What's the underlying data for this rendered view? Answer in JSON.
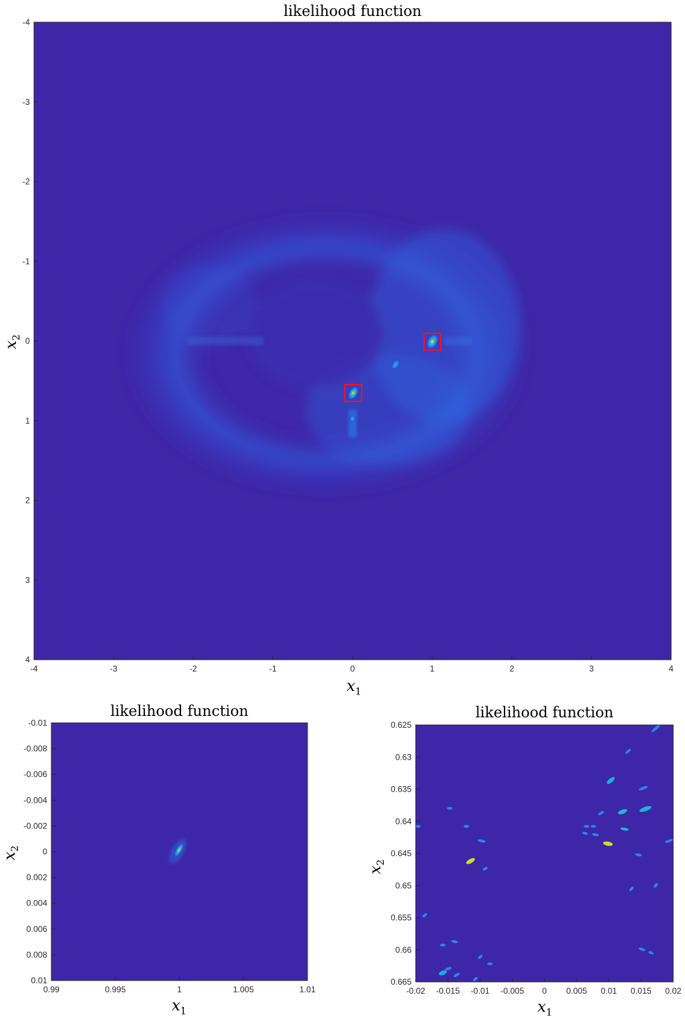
{
  "chart_data": [
    {
      "type": "heatmap",
      "title": "likelihood function",
      "xlabel": "x",
      "xlabel_sub": "1",
      "ylabel": "x",
      "ylabel_sub": "2",
      "xlim": [
        -4,
        4
      ],
      "ylim": [
        -4,
        4
      ],
      "y_direction": "reversed",
      "xticks": [
        "-4",
        "-3",
        "-2",
        "-1",
        "0",
        "1",
        "2",
        "3",
        "4"
      ],
      "yticks": [
        "-4",
        "-3",
        "-2",
        "-1",
        "0",
        "1",
        "2",
        "3",
        "4"
      ],
      "colormap": "parula",
      "highlight_boxes": [
        {
          "x1_range": [
            0.9,
            1.1
          ],
          "x2_range": [
            -0.1,
            0.1
          ]
        },
        {
          "x1_range": [
            -0.1,
            0.1
          ],
          "x2_range": [
            0.55,
            0.75
          ]
        }
      ],
      "peaks": [
        {
          "x1": 1.0,
          "x2": 0.0
        },
        {
          "x1": 0.0,
          "x2": 0.65
        }
      ]
    },
    {
      "type": "heatmap",
      "title": "likelihood function",
      "xlabel": "x",
      "xlabel_sub": "1",
      "ylabel": "x",
      "ylabel_sub": "2",
      "xlim": [
        0.99,
        1.01
      ],
      "ylim": [
        -0.01,
        0.01
      ],
      "y_direction": "reversed",
      "xticks": [
        "0.99",
        "0.995",
        "1",
        "1.005",
        "1.01"
      ],
      "yticks": [
        "-0.01",
        "-0.008",
        "-0.006",
        "-0.004",
        "-0.002",
        "0",
        "0.002",
        "0.004",
        "0.006",
        "0.008",
        "0.01"
      ],
      "colormap": "parula",
      "peaks": [
        {
          "x1": 1.0,
          "x2": 0.0
        }
      ]
    },
    {
      "type": "heatmap",
      "title": "likelihood function",
      "xlabel": "x",
      "xlabel_sub": "1",
      "ylabel": "x",
      "ylabel_sub": "2",
      "xlim": [
        -0.02,
        0.02
      ],
      "ylim": [
        0.625,
        0.665
      ],
      "y_direction": "reversed",
      "xticks": [
        "-0.02",
        "-0.015",
        "-0.01",
        "-0.005",
        "0",
        "0.005",
        "0.01",
        "0.015",
        "0.02"
      ],
      "yticks": [
        "0.625",
        "0.63",
        "0.635",
        "0.64",
        "0.645",
        "0.65",
        "0.655",
        "0.66",
        "0.665"
      ],
      "colormap": "parula",
      "peaks": [
        {
          "x1": 0.0102,
          "x2": 0.6437
        },
        {
          "x1": -0.0115,
          "x2": 0.6441
        },
        {
          "x1": 0.0103,
          "x2": 0.6355
        }
      ]
    }
  ]
}
